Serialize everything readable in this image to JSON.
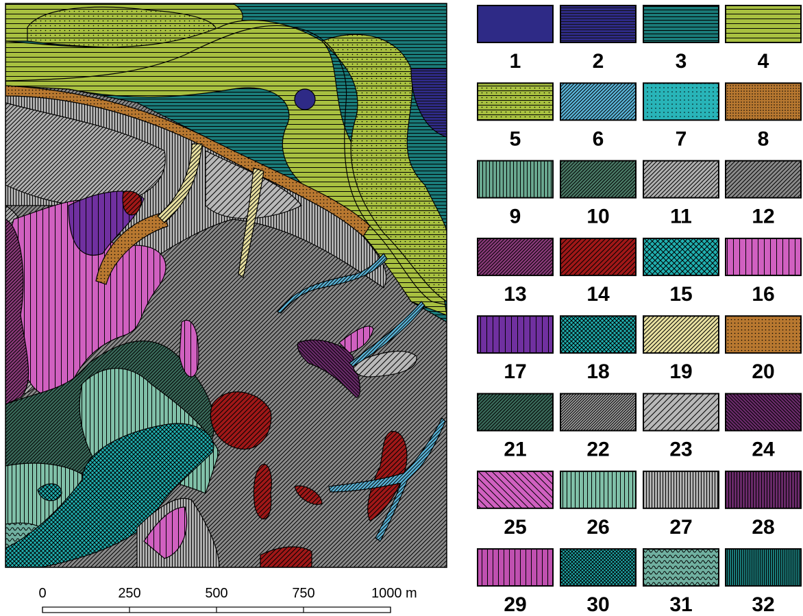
{
  "legend": {
    "items": [
      {
        "label": "1"
      },
      {
        "label": "2"
      },
      {
        "label": "3"
      },
      {
        "label": "4"
      },
      {
        "label": "5"
      },
      {
        "label": "6"
      },
      {
        "label": "7"
      },
      {
        "label": "8"
      },
      {
        "label": "9"
      },
      {
        "label": "10"
      },
      {
        "label": "11"
      },
      {
        "label": "12"
      },
      {
        "label": "13"
      },
      {
        "label": "14"
      },
      {
        "label": "15"
      },
      {
        "label": "16"
      },
      {
        "label": "17"
      },
      {
        "label": "18"
      },
      {
        "label": "19"
      },
      {
        "label": "20"
      },
      {
        "label": "21"
      },
      {
        "label": "22"
      },
      {
        "label": "23"
      },
      {
        "label": "24"
      },
      {
        "label": "25"
      },
      {
        "label": "26"
      },
      {
        "label": "27"
      },
      {
        "label": "28"
      },
      {
        "label": "29"
      },
      {
        "label": "30"
      },
      {
        "label": "31"
      },
      {
        "label": "32"
      }
    ]
  },
  "scale": {
    "labels": [
      "0",
      "250",
      "500",
      "750",
      "1000 m"
    ]
  }
}
